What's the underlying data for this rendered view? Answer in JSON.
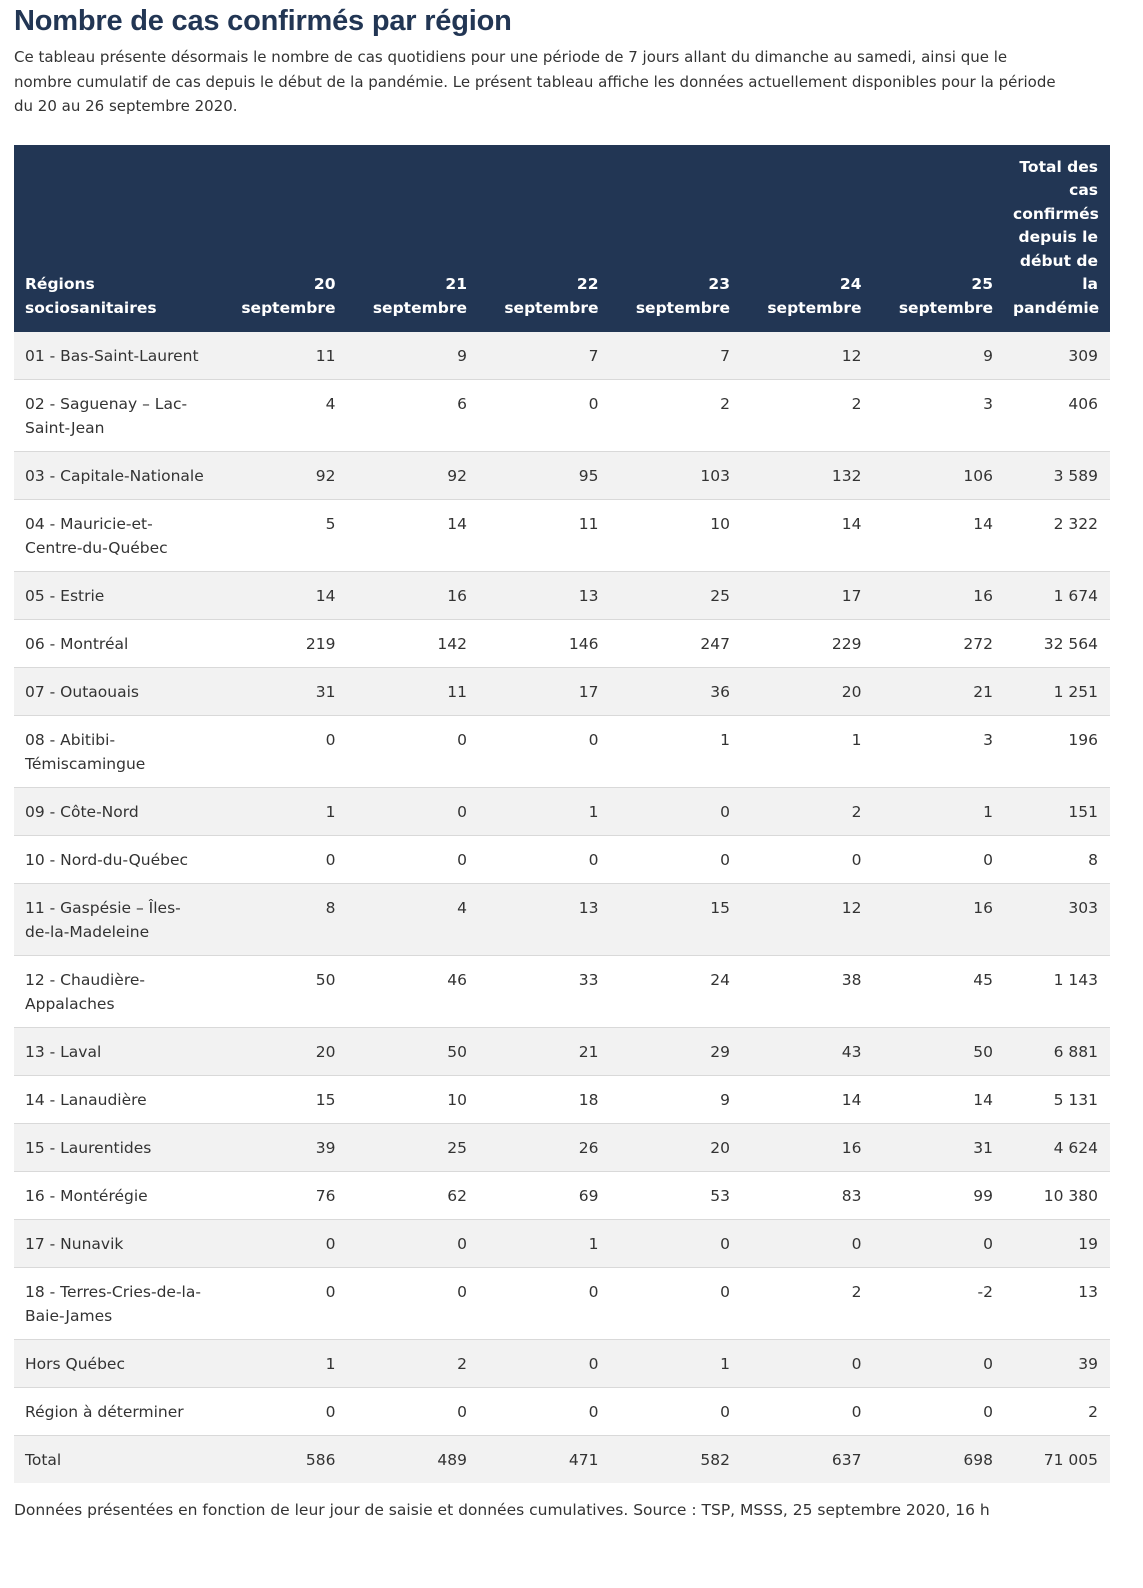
{
  "title": "Nombre de cas confirmés par région",
  "intro": "Ce tableau présente désormais le nombre de cas quotidiens pour une période de 7 jours allant du dimanche au samedi, ainsi que le nombre cumulatif de cas depuis le début de la pandémie. Le présent tableau affiche les données actuellement disponibles pour la période du 20 au 26 septembre 2020.",
  "table": {
    "headers": [
      "Régions sociosanitaires",
      "20 septembre",
      "21 septembre",
      "22 septembre",
      "23 septembre",
      "24 septembre",
      "25 septembre",
      "Total des cas confirmés depuis le début de la pandémie"
    ],
    "rows": [
      [
        "01 - Bas-Saint-Laurent",
        "11",
        "9",
        "7",
        "7",
        "12",
        "9",
        "309"
      ],
      [
        "02 - Saguenay – Lac-Saint-Jean",
        "4",
        "6",
        "0",
        "2",
        "2",
        "3",
        "406"
      ],
      [
        "03 - Capitale-Nationale",
        "92",
        "92",
        "95",
        "103",
        "132",
        "106",
        "3 589"
      ],
      [
        "04 - Mauricie-et-Centre-du-Québec",
        "5",
        "14",
        "11",
        "10",
        "14",
        "14",
        "2 322"
      ],
      [
        "05 - Estrie",
        "14",
        "16",
        "13",
        "25",
        "17",
        "16",
        "1 674"
      ],
      [
        "06 - Montréal",
        "219",
        "142",
        "146",
        "247",
        "229",
        "272",
        "32 564"
      ],
      [
        "07 - Outaouais",
        "31",
        "11",
        "17",
        "36",
        "20",
        "21",
        "1 251"
      ],
      [
        "08 - Abitibi-Témiscamingue",
        "0",
        "0",
        "0",
        "1",
        "1",
        "3",
        "196"
      ],
      [
        "09 - Côte-Nord",
        "1",
        "0",
        "1",
        "0",
        "2",
        "1",
        "151"
      ],
      [
        "10 - Nord-du-Québec",
        "0",
        "0",
        "0",
        "0",
        "0",
        "0",
        "8"
      ],
      [
        "11 - Gaspésie – Îles-de-la-Madeleine",
        "8",
        "4",
        "13",
        "15",
        "12",
        "16",
        "303"
      ],
      [
        "12 - Chaudière-Appalaches",
        "50",
        "46",
        "33",
        "24",
        "38",
        "45",
        "1 143"
      ],
      [
        "13 - Laval",
        "20",
        "50",
        "21",
        "29",
        "43",
        "50",
        "6 881"
      ],
      [
        "14 - Lanaudière",
        "15",
        "10",
        "18",
        "9",
        "14",
        "14",
        "5 131"
      ],
      [
        "15 - Laurentides",
        "39",
        "25",
        "26",
        "20",
        "16",
        "31",
        "4 624"
      ],
      [
        "16 - Montérégie",
        "76",
        "62",
        "69",
        "53",
        "83",
        "99",
        "10 380"
      ],
      [
        "17 - Nunavik",
        "0",
        "0",
        "1",
        "0",
        "0",
        "0",
        "19"
      ],
      [
        "18 - Terres-Cries-de-la-Baie-James",
        "0",
        "0",
        "0",
        "0",
        "2",
        "-2",
        "13"
      ],
      [
        "Hors Québec",
        "1",
        "2",
        "0",
        "1",
        "0",
        "0",
        "39"
      ],
      [
        "Région à déterminer",
        "0",
        "0",
        "0",
        "0",
        "0",
        "0",
        "2"
      ],
      [
        "Total",
        "586",
        "489",
        "471",
        "582",
        "637",
        "698",
        "71 005"
      ]
    ]
  },
  "note": "Données présentées en fonction de leur jour de saisie et données cumulatives. Source : TSP, MSSS, 25 septembre 2020, 16 h"
}
